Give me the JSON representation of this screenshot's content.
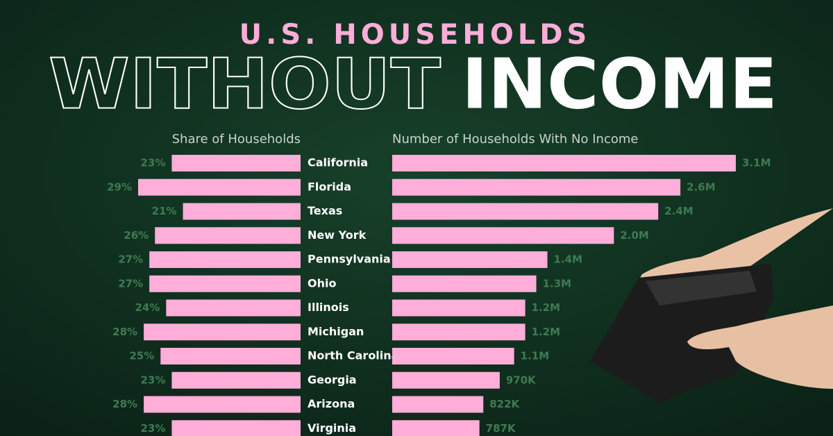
{
  "chart_data": {
    "type": "bar",
    "title": "U.S. HOUSEHOLDS",
    "headline": {
      "outline": "WITHOUT",
      "solid": "INCOME"
    },
    "categories": [
      "California",
      "Florida",
      "Texas",
      "New York",
      "Pennsylvania",
      "Ohio",
      "Illinois",
      "Michigan",
      "North Carolina",
      "Georgia",
      "Arizona",
      "Virginia"
    ],
    "series": [
      {
        "name": "Share of Households",
        "color": "#ffadd9",
        "direction": "left",
        "values": [
          23,
          29,
          21,
          26,
          27,
          27,
          24,
          28,
          25,
          23,
          28,
          23
        ],
        "value_labels": [
          "23%",
          "29%",
          "21%",
          "26%",
          "27%",
          "27%",
          "24%",
          "28%",
          "25%",
          "23%",
          "28%",
          "23%"
        ]
      },
      {
        "name": "Number of Households With No Income",
        "color": "#ffadd9",
        "direction": "right",
        "values": [
          3100000,
          2600000,
          2400000,
          2000000,
          1400000,
          1300000,
          1200000,
          1200000,
          1100000,
          970000,
          822000,
          787000
        ],
        "value_labels": [
          "3.1M",
          "2.6M",
          "2.4M",
          "2.0M",
          "1.4M",
          "1.3M",
          "1.2M",
          "1.2M",
          "1.1M",
          "970K",
          "822K",
          "787K"
        ]
      }
    ]
  }
}
